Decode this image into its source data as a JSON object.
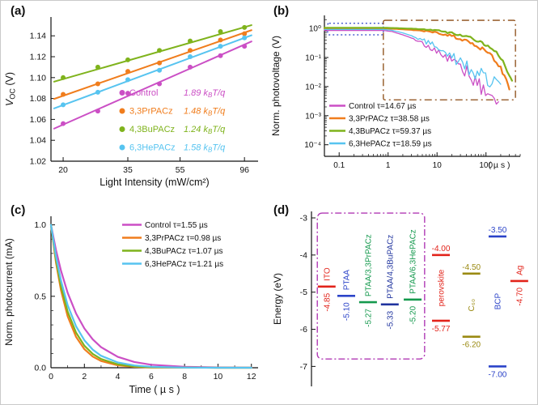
{
  "chart_data": [
    {
      "panel_label": "(a)",
      "type": "scatter",
      "xscale": "log",
      "xlabel": "Light Intensity (mW/cm²)",
      "ylabel_parts": {
        "main": "V",
        "sub": "OC",
        "rest": " (V)"
      },
      "xlim": [
        18,
        108
      ],
      "ylim": [
        1.02,
        1.158
      ],
      "xticks": [
        20,
        35,
        55,
        96
      ],
      "yticks": [
        1.02,
        1.04,
        1.06,
        1.08,
        1.1,
        1.12,
        1.14
      ],
      "slope_unit": {
        "k": "k",
        "sub": "B",
        "rest": "T/q"
      },
      "series": [
        {
          "name": "Control",
          "color": "#cb4fc5",
          "slope": "1.89",
          "x": [
            20,
            27,
            35,
            46,
            60,
            78,
            96
          ],
          "y": [
            1.056,
            1.068,
            1.085,
            1.094,
            1.11,
            1.121,
            1.13
          ],
          "fit": {
            "x": [
              18.5,
              102
            ],
            "y": [
              1.0512,
              1.1346
            ]
          }
        },
        {
          "name": "3,3PrPACz",
          "color": "#f07d1d",
          "slope": "1.48",
          "x": [
            20,
            27,
            35,
            46,
            60,
            78,
            96
          ],
          "y": [
            1.084,
            1.094,
            1.106,
            1.114,
            1.126,
            1.136,
            1.142
          ],
          "fit": {
            "x": [
              18.5,
              102
            ],
            "y": [
              1.0796,
              1.1454
            ]
          }
        },
        {
          "name": "4,3BuPACz",
          "color": "#7fb31c",
          "slope": "1.24",
          "x": [
            20,
            27,
            35,
            46,
            60,
            78,
            96
          ],
          "y": [
            1.1,
            1.11,
            1.117,
            1.126,
            1.135,
            1.144,
            1.148
          ],
          "fit": {
            "x": [
              18.5,
              102
            ],
            "y": [
              1.0961,
              1.1502
            ]
          }
        },
        {
          "name": "6,3HePACz",
          "color": "#57c4f0",
          "slope": "1.58",
          "x": [
            20,
            27,
            35,
            46,
            60,
            78,
            96
          ],
          "y": [
            1.074,
            1.086,
            1.098,
            1.107,
            1.12,
            1.13,
            1.138
          ],
          "fit": {
            "x": [
              18.5,
              102
            ],
            "y": [
              1.0705,
              1.1405
            ]
          }
        }
      ]
    },
    {
      "panel_label": "(b)",
      "type": "line",
      "xscale": "log",
      "yscale": "log",
      "ylabel": "Norm. photovoltage (V)",
      "xunit": "( µ s )",
      "xlim": [
        0.05,
        500
      ],
      "ylim": [
        4e-05,
        2.8
      ],
      "xticks": [
        {
          "v": 0.1,
          "label": "0.1"
        },
        {
          "v": 1,
          "label": "1"
        },
        {
          "v": 10,
          "label": "10"
        },
        {
          "v": 100,
          "label": "100"
        }
      ],
      "yticks": [
        {
          "v": 1,
          "label": "10⁰"
        },
        {
          "v": 0.1,
          "label": "10⁻¹"
        },
        {
          "v": 0.01,
          "label": "10⁻²"
        },
        {
          "v": 0.001,
          "label": "10⁻³"
        },
        {
          "v": 0.0001,
          "label": "10⁻⁴"
        }
      ],
      "boxes": [
        {
          "color": "#2b43c8",
          "dash": "2,3",
          "t": [
            0.058,
            0.8
          ],
          "v": [
            0.6,
            1.5
          ]
        },
        {
          "color": "#8a4a12",
          "dash": "9,4,2,4",
          "t": [
            0.8,
            400
          ],
          "v": [
            0.0035,
            1.9
          ]
        }
      ],
      "series": [
        {
          "name": "Control",
          "tau_label": "τ=14.67 µs",
          "color": "#cb4fc5",
          "noise": 0.5,
          "t": [
            0.05,
            0.8,
            1.2,
            2,
            3,
            5,
            8,
            12,
            20,
            30,
            50,
            80,
            120,
            180
          ],
          "v": [
            0.85,
            0.85,
            0.78,
            0.6,
            0.47,
            0.32,
            0.2,
            0.135,
            0.075,
            0.045,
            0.022,
            0.01,
            0.005,
            0.003
          ]
        },
        {
          "name": "3,3PrPACz",
          "tau_label": "τ=38.58 µs",
          "color": "#f07d1d",
          "noise": 0.12,
          "t": [
            0.05,
            0.8,
            1.5,
            3,
            6,
            10,
            20,
            40,
            70,
            120,
            200,
            260,
            300
          ],
          "v": [
            1.0,
            1.0,
            0.96,
            0.89,
            0.8,
            0.71,
            0.55,
            0.37,
            0.24,
            0.13,
            0.045,
            0.016,
            0.008
          ]
        },
        {
          "name": "4,3BuPACz",
          "tau_label": "τ=59.37 µs",
          "color": "#7fb31c",
          "noise": 0.1,
          "t": [
            0.05,
            0.8,
            1.5,
            3,
            6,
            10,
            20,
            40,
            70,
            120,
            200,
            300,
            340
          ],
          "v": [
            1.05,
            1.05,
            1.02,
            0.97,
            0.9,
            0.83,
            0.7,
            0.52,
            0.38,
            0.24,
            0.1,
            0.025,
            0.016
          ]
        },
        {
          "name": "6,3HePACz",
          "tau_label": "τ=18.59 µs",
          "color": "#57c4f0",
          "noise": 0.55,
          "t": [
            0.05,
            0.8,
            1.2,
            2,
            3,
            5,
            8,
            12,
            20,
            30,
            50,
            80,
            120,
            200
          ],
          "v": [
            0.92,
            0.92,
            0.86,
            0.7,
            0.56,
            0.4,
            0.27,
            0.185,
            0.115,
            0.075,
            0.042,
            0.025,
            0.018,
            0.012
          ]
        }
      ]
    },
    {
      "panel_label": "(c)",
      "type": "line",
      "xlabel": "Time ( µ s )",
      "ylabel": "Norm. photocurrent (mA)",
      "xlim": [
        0,
        12.4
      ],
      "ylim": [
        0,
        1.06
      ],
      "xticks": [
        0,
        2,
        4,
        6,
        8,
        10,
        12
      ],
      "yticks": [
        0.0,
        0.5,
        1.0
      ],
      "series": [
        {
          "name": "Control",
          "tau_label": "τ=1.55 µs",
          "color": "#cb4fc5",
          "t": [
            0,
            0.3,
            0.6,
            1,
            1.5,
            2,
            2.5,
            3,
            4,
            5,
            6,
            8,
            10,
            12
          ],
          "v": [
            1,
            0.824,
            0.679,
            0.525,
            0.38,
            0.275,
            0.199,
            0.144,
            0.076,
            0.04,
            0.021,
            0.006,
            0.002,
            0.001
          ]
        },
        {
          "name": "3,3PrPACz",
          "tau_label": "τ=0.98 µs",
          "color": "#f07d1d",
          "t": [
            0,
            0.3,
            0.6,
            1,
            1.5,
            2,
            2.5,
            3,
            4,
            5,
            6,
            8,
            10,
            12
          ],
          "v": [
            1,
            0.736,
            0.542,
            0.36,
            0.216,
            0.13,
            0.078,
            0.047,
            0.017,
            0.006,
            0.002,
            0.001,
            0,
            0
          ]
        },
        {
          "name": "4,3BuPACz",
          "tau_label": "τ=1.07 µs",
          "color": "#7fb31c",
          "t": [
            0,
            0.3,
            0.6,
            1,
            1.5,
            2,
            2.5,
            3,
            4,
            5,
            6,
            8,
            10,
            12
          ],
          "v": [
            1,
            0.755,
            0.571,
            0.393,
            0.246,
            0.154,
            0.097,
            0.061,
            0.024,
            0.009,
            0.004,
            0.001,
            0,
            0
          ]
        },
        {
          "name": "6,3HePACz",
          "tau_label": "τ=1.21 µs",
          "color": "#57c4f0",
          "t": [
            0,
            0.3,
            0.6,
            1,
            1.5,
            2,
            2.5,
            3,
            4,
            5,
            6,
            8,
            10,
            12
          ],
          "v": [
            1,
            0.78,
            0.609,
            0.438,
            0.29,
            0.192,
            0.127,
            0.084,
            0.037,
            0.016,
            0.007,
            0.001,
            0,
            0
          ]
        }
      ]
    },
    {
      "panel_label": "(d)",
      "type": "energy-diagram",
      "ylabel": "Energy (eV)",
      "yticks": [
        -3,
        -4,
        -5,
        -6,
        -7
      ],
      "ylim": [
        -3,
        -7.45
      ],
      "box": {
        "color": "#b03ab5",
        "e_top": -2.87,
        "e_bottom": -6.8,
        "fx1": 0.012,
        "fx2": 0.505
      },
      "materials": [
        {
          "name": "ITO",
          "color": "#e2231a",
          "fx": 0.055,
          "levels": [
            {
              "e": -4.85,
              "label": "-4.85",
              "vertical": true
            }
          ]
        },
        {
          "name": "PTAA",
          "color": "#2b43c8",
          "fx": 0.145,
          "levels": [
            {
              "e": -5.1,
              "label": "-5.10",
              "vertical": true
            }
          ]
        },
        {
          "name": "PTAA/3,3PrPACz",
          "color": "#14994d",
          "fx": 0.245,
          "levels": [
            {
              "e": -5.27,
              "label": "-5.27",
              "vertical": true
            }
          ]
        },
        {
          "name": "PTAA/4,3BuPACz",
          "color": "#1f339e",
          "fx": 0.345,
          "levels": [
            {
              "e": -5.33,
              "label": "-5.33",
              "vertical": true
            }
          ]
        },
        {
          "name": "PTAA/6,3HePACz",
          "color": "#14994d",
          "fx": 0.45,
          "levels": [
            {
              "e": -5.2,
              "label": "-5.20",
              "vertical": true
            }
          ]
        },
        {
          "name": "perovskite",
          "color": "#e2231a",
          "fx": 0.58,
          "levels": [
            {
              "e": -4.0,
              "label": "-4.00"
            },
            {
              "e": -5.77,
              "label": "-5.77"
            }
          ]
        },
        {
          "name": "C₆₀",
          "color": "#9a8a12",
          "fx": 0.72,
          "levels": [
            {
              "e": -4.5,
              "label": "-4.50"
            },
            {
              "e": -6.2,
              "label": "-6.20"
            }
          ]
        },
        {
          "name": "BCP",
          "color": "#2b43c8",
          "fx": 0.84,
          "levels": [
            {
              "e": -3.5,
              "label": "-3.50"
            },
            {
              "e": -7.0,
              "label": "-7.00"
            }
          ]
        },
        {
          "name": "Ag",
          "color": "#e2231a",
          "fx": 0.94,
          "levels": [
            {
              "e": -4.7,
              "label": "-4.70",
              "vertical": true
            }
          ]
        }
      ]
    }
  ]
}
